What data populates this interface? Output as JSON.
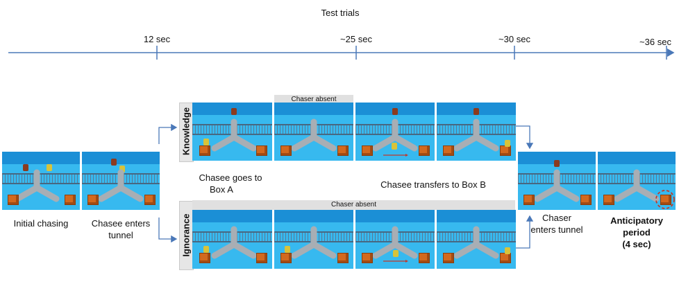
{
  "timeline": {
    "title": "Test trials",
    "ticks": [
      "12 sec",
      "~25 sec",
      "~30 sec",
      "~36 sec"
    ]
  },
  "rows": {
    "knowledge_label": "Knowledge",
    "ignorance_label": "Ignorance"
  },
  "labels": {
    "initial": "Initial chasing",
    "chasee_enters_1": "Chasee enters",
    "chasee_enters_2": "tunnel",
    "goes_box_a_1": "Chasee goes to",
    "goes_box_a_2": "Box A",
    "transfers_box_b": "Chasee transfers to Box B",
    "chaser_enters_1": "Chaser",
    "chaser_enters_2": "enters tunnel",
    "anticipatory_1": "Anticipatory",
    "anticipatory_2": "period",
    "anticipatory_3": "(4 sec)",
    "chaser_absent_top": "Chaser absent",
    "chaser_absent_bottom": "Chaser absent"
  },
  "colors": {
    "line": "#4a78b8",
    "sky": "#37b9ef",
    "box": "#d2691e",
    "highlight": "#c0392b"
  }
}
